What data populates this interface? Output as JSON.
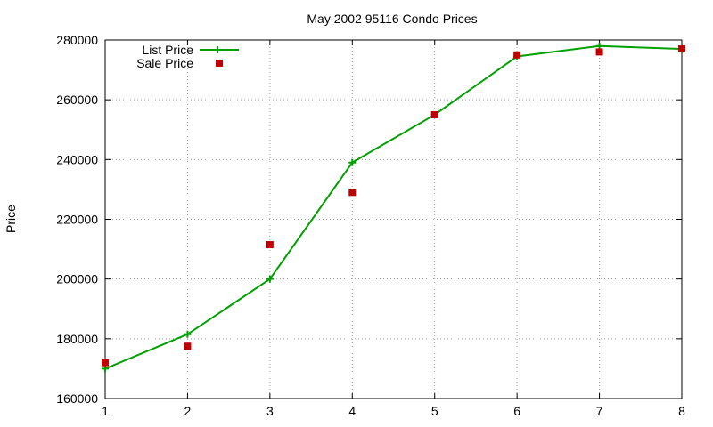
{
  "chart_data": {
    "type": "line",
    "title": "May 2002 95116 Condo Prices",
    "xlabel": "",
    "ylabel": "Price",
    "x": [
      1,
      2,
      3,
      4,
      5,
      6,
      7,
      8
    ],
    "xlim": [
      1,
      8
    ],
    "ylim": [
      160000,
      280000
    ],
    "xticks": [
      "1",
      "2",
      "3",
      "4",
      "5",
      "6",
      "7",
      "8"
    ],
    "yticks": [
      "160000",
      "180000",
      "200000",
      "220000",
      "240000",
      "260000",
      "280000"
    ],
    "grid": true,
    "legend_position": "top-left",
    "series": [
      {
        "name": "List Price",
        "style": "line-with-plus-markers",
        "color": "#00a000",
        "values": [
          170000,
          181500,
          200000,
          239000,
          255000,
          274500,
          278000,
          277000
        ]
      },
      {
        "name": "Sale Price",
        "style": "square-markers",
        "color": "#c00000",
        "values": [
          172000,
          177500,
          211500,
          229000,
          255000,
          275000,
          276000,
          277000
        ]
      }
    ]
  }
}
